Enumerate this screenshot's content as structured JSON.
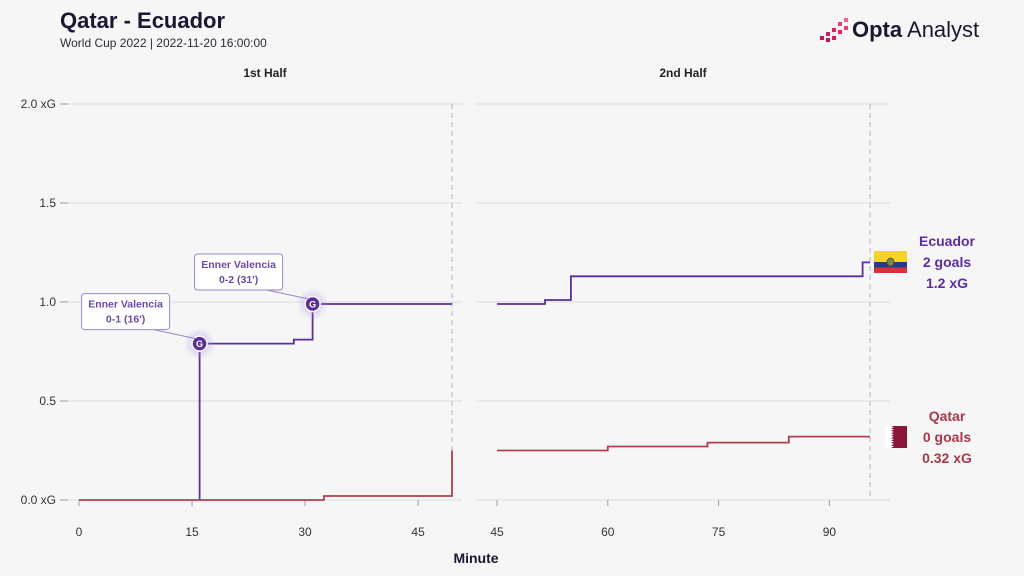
{
  "header": {
    "title": "Qatar - Ecuador",
    "subtitle": "World Cup 2022 | 2022-11-20 16:00:00",
    "brand_bold": "Opta",
    "brand_light": " Analyst"
  },
  "teams": {
    "ecuador": {
      "name": "Ecuador",
      "goals": "2 goals",
      "xg": "1.2 xG",
      "color": "#5b2e9a",
      "flag": "ecuador-flag"
    },
    "qatar": {
      "name": "Qatar",
      "goals": "0 goals",
      "xg": "0.32 xG",
      "color": "#b04050",
      "flag": "qatar-flag"
    }
  },
  "chart_data": {
    "type": "line",
    "xlabel": "Minute",
    "ylabel": "",
    "ylim": [
      0,
      2.0
    ],
    "y_ticks": [
      {
        "value": 0.0,
        "label": "0.0 xG"
      },
      {
        "value": 0.5,
        "label": "0.5"
      },
      {
        "value": 1.0,
        "label": "1.0"
      },
      {
        "value": 1.5,
        "label": "1.5"
      },
      {
        "value": 2.0,
        "label": "2.0 xG"
      }
    ],
    "panels": [
      {
        "label": "1st Half",
        "xlim": [
          0,
          50
        ],
        "x_ticks": [
          0,
          15,
          30,
          45
        ],
        "end_minute": 49.5,
        "series": [
          {
            "name": "Ecuador",
            "points": [
              [
                16,
                0
              ],
              [
                16,
                0.79
              ],
              [
                28.5,
                0.79
              ],
              [
                28.5,
                0.81
              ],
              [
                31,
                0.81
              ],
              [
                31,
                0.99
              ],
              [
                49.5,
                0.99
              ]
            ]
          },
          {
            "name": "Qatar",
            "points": [
              [
                0,
                0
              ],
              [
                32.5,
                0
              ],
              [
                32.5,
                0.02
              ],
              [
                49.5,
                0.02
              ],
              [
                49.5,
                0.25
              ]
            ]
          }
        ],
        "goals": [
          {
            "team": "Ecuador",
            "minute": 16,
            "xg": 0.79,
            "marker": "G",
            "label_line1": "Enner Valencia",
            "label_line2": "0-1 (16')"
          },
          {
            "team": "Ecuador",
            "minute": 31,
            "xg": 0.99,
            "marker": "G",
            "label_line1": "Enner Valencia",
            "label_line2": "0-2 (31')"
          }
        ]
      },
      {
        "label": "2nd Half",
        "xlim": [
          45,
          98
        ],
        "x_ticks": [
          45,
          60,
          75,
          90
        ],
        "end_minute": 95.5,
        "series": [
          {
            "name": "Ecuador",
            "points": [
              [
                45,
                0.99
              ],
              [
                51.5,
                0.99
              ],
              [
                51.5,
                1.01
              ],
              [
                55,
                1.01
              ],
              [
                55,
                1.13
              ],
              [
                94.5,
                1.13
              ],
              [
                94.5,
                1.2
              ],
              [
                95.5,
                1.2
              ]
            ]
          },
          {
            "name": "Qatar",
            "points": [
              [
                45,
                0.25
              ],
              [
                60,
                0.25
              ],
              [
                60,
                0.27
              ],
              [
                73.5,
                0.27
              ],
              [
                73.5,
                0.29
              ],
              [
                84.5,
                0.29
              ],
              [
                84.5,
                0.32
              ],
              [
                95.5,
                0.32
              ]
            ]
          }
        ],
        "goals": []
      }
    ]
  }
}
